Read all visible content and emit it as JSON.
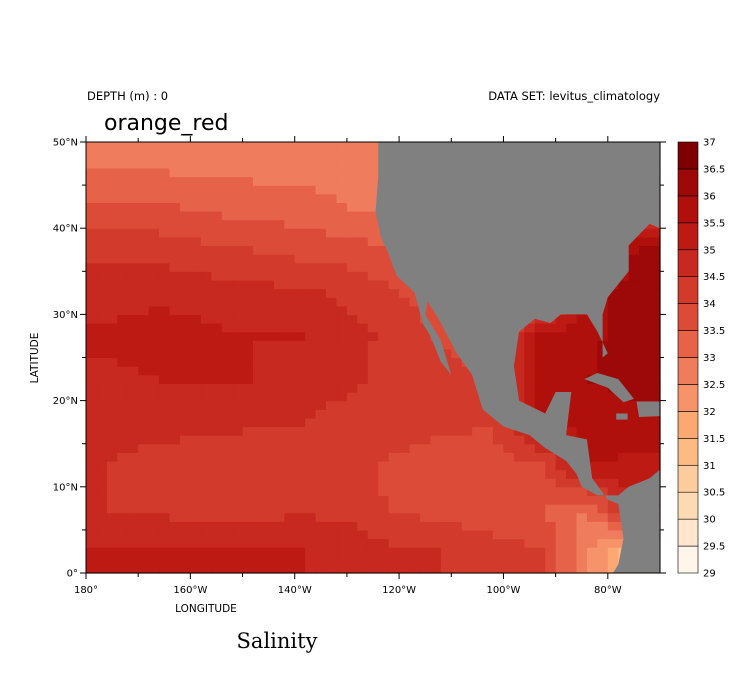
{
  "header": {
    "depth_label": "DEPTH (m) : 0",
    "dataset_label": "DATA SET: levitus_climatology",
    "palette_name": "orange_red"
  },
  "colors": {
    "land": "#808080",
    "frame": "#000000"
  },
  "chart_data": {
    "type": "heatmap",
    "title": "Salinity",
    "xlabel": "LONGITUDE",
    "ylabel": "LATITUDE",
    "xlim": [
      -180,
      -70
    ],
    "ylim": [
      0,
      50
    ],
    "x_ticks": [
      {
        "value": -180,
        "label": "180°"
      },
      {
        "value": -160,
        "label": "160°W"
      },
      {
        "value": -140,
        "label": "140°W"
      },
      {
        "value": -120,
        "label": "120°W"
      },
      {
        "value": -100,
        "label": "100°W"
      },
      {
        "value": -80,
        "label": "80°W"
      }
    ],
    "y_ticks": [
      {
        "value": 0,
        "label": "0°"
      },
      {
        "value": 10,
        "label": "10°N"
      },
      {
        "value": 20,
        "label": "20°N"
      },
      {
        "value": 30,
        "label": "30°N"
      },
      {
        "value": 40,
        "label": "40°N"
      },
      {
        "value": 50,
        "label": "50°N"
      }
    ],
    "colorbar": {
      "levels": [
        "29",
        "29.5",
        "30",
        "30.5",
        "31",
        "31.5",
        "32",
        "32.5",
        "33",
        "33.5",
        "34",
        "34.5",
        "35",
        "35.5",
        "36",
        "36.5",
        "37"
      ],
      "colors": [
        "#fff5eb",
        "#fee6ce",
        "#fdd9b4",
        "#fdcc9c",
        "#fdbb84",
        "#fca872",
        "#f6936a",
        "#ef7d5d",
        "#e6634a",
        "#dc4b38",
        "#d23b2c",
        "#c7281f",
        "#bd1a14",
        "#b0100c",
        "#9d0808",
        "#7f0000"
      ]
    },
    "salinity_rows": [
      {
        "lat": 47.5,
        "values": [
          32.9,
          32.9,
          32.8,
          32.8,
          32.8,
          32.7,
          32.6,
          32.5,
          32.4,
          32.3,
          32.2,
          32.0
        ]
      },
      {
        "lat": 42.5,
        "values": [
          33.6,
          33.6,
          33.4,
          33.3,
          33.2,
          33.0,
          32.9,
          32.8,
          32.7,
          32.5,
          32.8,
          34.0
        ]
      },
      {
        "lat": 37.5,
        "values": [
          34.3,
          34.3,
          34.1,
          34.0,
          33.8,
          33.7,
          33.5,
          33.4,
          33.3,
          33.4,
          35.0,
          36.0
        ]
      },
      {
        "lat": 32.5,
        "values": [
          34.8,
          34.9,
          34.8,
          34.7,
          34.6,
          34.4,
          34.0,
          33.8,
          33.6,
          33.5,
          35.8,
          36.3
        ]
      },
      {
        "lat": 27.5,
        "values": [
          35.1,
          35.2,
          35.1,
          35.0,
          35.0,
          34.7,
          34.3,
          33.9,
          33.6,
          35.6,
          35.9,
          36.2
        ]
      },
      {
        "lat": 22.5,
        "values": [
          34.9,
          35.0,
          35.0,
          35.0,
          34.8,
          34.6,
          34.3,
          34.2,
          34.0,
          35.7,
          36.0,
          36.2
        ]
      },
      {
        "lat": 17.5,
        "values": [
          34.6,
          34.6,
          34.6,
          34.5,
          34.5,
          34.3,
          34.2,
          34.1,
          34.0,
          35.5,
          35.7,
          35.8
        ]
      },
      {
        "lat": 12.5,
        "values": [
          34.5,
          34.4,
          34.3,
          34.4,
          34.3,
          34.1,
          33.9,
          33.8,
          33.8,
          33.9,
          35.5,
          35.4
        ]
      },
      {
        "lat": 7.5,
        "values": [
          34.5,
          34.4,
          34.3,
          34.3,
          34.4,
          34.3,
          33.9,
          33.8,
          33.6,
          33.5,
          33.0,
          35.0
        ]
      },
      {
        "lat": 2.5,
        "values": [
          35.0,
          35.0,
          35.1,
          35.1,
          35.0,
          34.9,
          34.6,
          34.5,
          34.3,
          34.0,
          32.5,
          31.0
        ]
      }
    ],
    "land_polygons": [
      {
        "name": "north-america",
        "points": [
          [
            -124,
            50
          ],
          [
            -70,
            50
          ],
          [
            -70,
            40
          ],
          [
            -72,
            40.5
          ],
          [
            -76,
            38
          ],
          [
            -76,
            35
          ],
          [
            -80,
            32
          ],
          [
            -81,
            30
          ],
          [
            -81,
            25
          ],
          [
            -80,
            25.5
          ],
          [
            -82,
            28
          ],
          [
            -84,
            30
          ],
          [
            -89,
            30
          ],
          [
            -91,
            29
          ],
          [
            -94,
            29.5
          ],
          [
            -97,
            28
          ],
          [
            -98,
            24
          ],
          [
            -97,
            20
          ],
          [
            -92,
            18.5
          ],
          [
            -90,
            21
          ],
          [
            -87,
            21
          ],
          [
            -88,
            16
          ],
          [
            -84,
            15.5
          ],
          [
            -83,
            11
          ],
          [
            -80,
            8.5
          ],
          [
            -78,
            8
          ],
          [
            -77,
            4
          ],
          [
            -78,
            1
          ],
          [
            -79,
            0
          ],
          [
            -70,
            0
          ],
          [
            -70,
            12
          ],
          [
            -72,
            11
          ],
          [
            -76,
            10
          ],
          [
            -78,
            9
          ],
          [
            -82,
            9
          ],
          [
            -85,
            10
          ],
          [
            -86,
            11.5
          ],
          [
            -88,
            13
          ],
          [
            -92,
            14.5
          ],
          [
            -95,
            16
          ],
          [
            -100,
            17
          ],
          [
            -104,
            19
          ],
          [
            -106,
            23
          ],
          [
            -109,
            25.5
          ],
          [
            -112,
            29
          ],
          [
            -114.5,
            31.5
          ],
          [
            -115,
            30
          ],
          [
            -112,
            27
          ],
          [
            -110,
            23
          ],
          [
            -112,
            24.5
          ],
          [
            -114,
            27.5
          ],
          [
            -115.5,
            29
          ],
          [
            -117,
            32.5
          ],
          [
            -120.5,
            34.5
          ],
          [
            -122,
            37
          ],
          [
            -123.5,
            39
          ],
          [
            -124.5,
            42
          ],
          [
            -124,
            46
          ],
          [
            -124,
            50
          ]
        ]
      },
      {
        "name": "cuba",
        "points": [
          [
            -84.5,
            22.5
          ],
          [
            -82,
            23.2
          ],
          [
            -78,
            22.5
          ],
          [
            -75,
            20.2
          ],
          [
            -77,
            19.8
          ],
          [
            -80,
            21.5
          ],
          [
            -84.5,
            22.5
          ]
        ]
      },
      {
        "name": "hispaniola",
        "points": [
          [
            -74.5,
            19.9
          ],
          [
            -70,
            19.9
          ],
          [
            -70,
            18.2
          ],
          [
            -74,
            18.1
          ],
          [
            -74.5,
            19.9
          ]
        ]
      },
      {
        "name": "jamaica",
        "points": [
          [
            -78.4,
            18.5
          ],
          [
            -76.2,
            18.5
          ],
          [
            -76.2,
            17.8
          ],
          [
            -78.4,
            17.8
          ],
          [
            -78.4,
            18.5
          ]
        ]
      }
    ]
  }
}
